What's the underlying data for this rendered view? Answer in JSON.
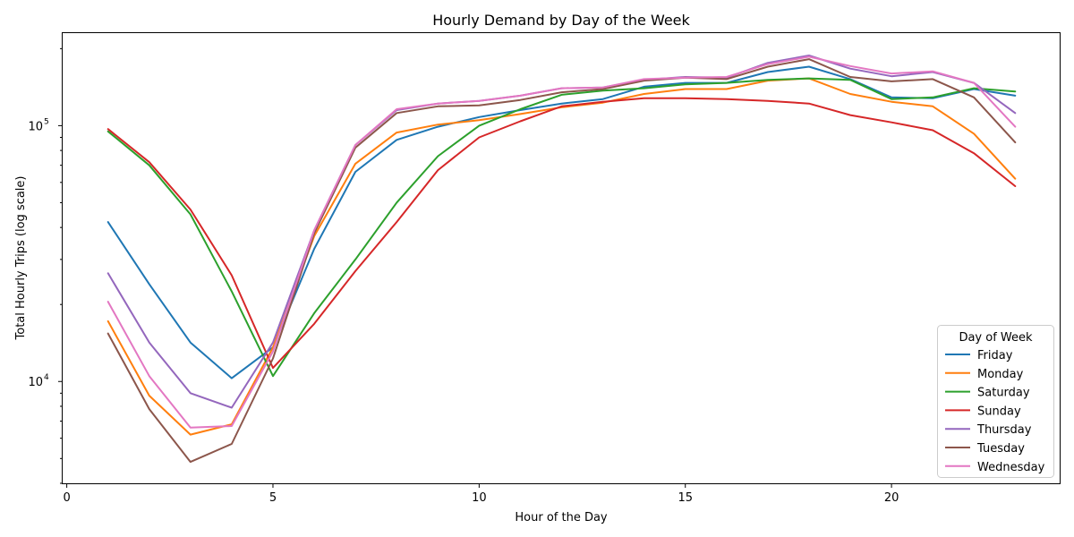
{
  "chart_data": {
    "type": "line",
    "title": "Hourly Demand by Day of the Week",
    "xlabel": "Hour of the Day",
    "ylabel": "Total Hourly Trips (log scale)",
    "yscale": "log",
    "xlim": [
      -0.1,
      24.1
    ],
    "ylim": [
      4000,
      230000
    ],
    "xticks": [
      0,
      5,
      10,
      15,
      20
    ],
    "yticks_major": [
      10000,
      100000
    ],
    "ytick_labels": [
      "10",
      "10"
    ],
    "ytick_exponents": [
      "4",
      "5"
    ],
    "grid": false,
    "legend": {
      "title": "Day of Week",
      "placement": "lower-right"
    },
    "x": [
      1,
      2,
      3,
      4,
      5,
      6,
      7,
      8,
      9,
      10,
      11,
      12,
      13,
      14,
      15,
      16,
      17,
      18,
      19,
      20,
      21,
      22,
      23
    ],
    "series": [
      {
        "name": "Friday",
        "color": "#1f77b4",
        "values": [
          42000,
          24000,
          14200,
          10300,
          13600,
          33000,
          66000,
          88000,
          99000,
          108000,
          115000,
          122000,
          127000,
          142000,
          147000,
          147000,
          162000,
          170000,
          152000,
          129000,
          128000,
          139000,
          131000
        ]
      },
      {
        "name": "Monday",
        "color": "#ff7f0e",
        "values": [
          17200,
          8800,
          6200,
          6800,
          13600,
          37000,
          71000,
          94000,
          101000,
          105000,
          111000,
          118000,
          123000,
          133000,
          139000,
          139000,
          150000,
          153000,
          133000,
          124000,
          119000,
          93000,
          62000
        ]
      },
      {
        "name": "Saturday",
        "color": "#2ca02c",
        "values": [
          95000,
          70000,
          45000,
          22500,
          10500,
          18500,
          30000,
          50000,
          76000,
          100000,
          116000,
          132000,
          137000,
          140000,
          145000,
          147000,
          151000,
          153000,
          151000,
          127000,
          129000,
          140000,
          136000
        ]
      },
      {
        "name": "Sunday",
        "color": "#d62728",
        "values": [
          97000,
          72000,
          47000,
          26000,
          11300,
          16800,
          27000,
          42000,
          67000,
          90000,
          104000,
          119000,
          124000,
          128000,
          128000,
          127000,
          125000,
          122000,
          110000,
          103000,
          96000,
          78000,
          58000
        ]
      },
      {
        "name": "Thursday",
        "color": "#9467bd",
        "values": [
          26500,
          14200,
          9000,
          7900,
          14200,
          39000,
          84000,
          115000,
          122000,
          125000,
          131000,
          140000,
          141000,
          151000,
          155000,
          154000,
          176000,
          188000,
          167000,
          156000,
          162000,
          147000,
          112000
        ]
      },
      {
        "name": "Tuesday",
        "color": "#8c564b",
        "values": [
          15400,
          7800,
          4850,
          5700,
          12300,
          38000,
          82000,
          112000,
          119000,
          120000,
          126000,
          135000,
          139000,
          150000,
          154000,
          152000,
          170000,
          182000,
          155000,
          149000,
          152000,
          129000,
          86000
        ]
      },
      {
        "name": "Wednesday",
        "color": "#e377c2",
        "values": [
          20500,
          10500,
          6600,
          6700,
          13100,
          39000,
          84000,
          116000,
          122000,
          125000,
          131000,
          140000,
          141000,
          152000,
          154000,
          155000,
          174000,
          186000,
          171000,
          160000,
          163000,
          147000,
          99000
        ]
      }
    ]
  }
}
